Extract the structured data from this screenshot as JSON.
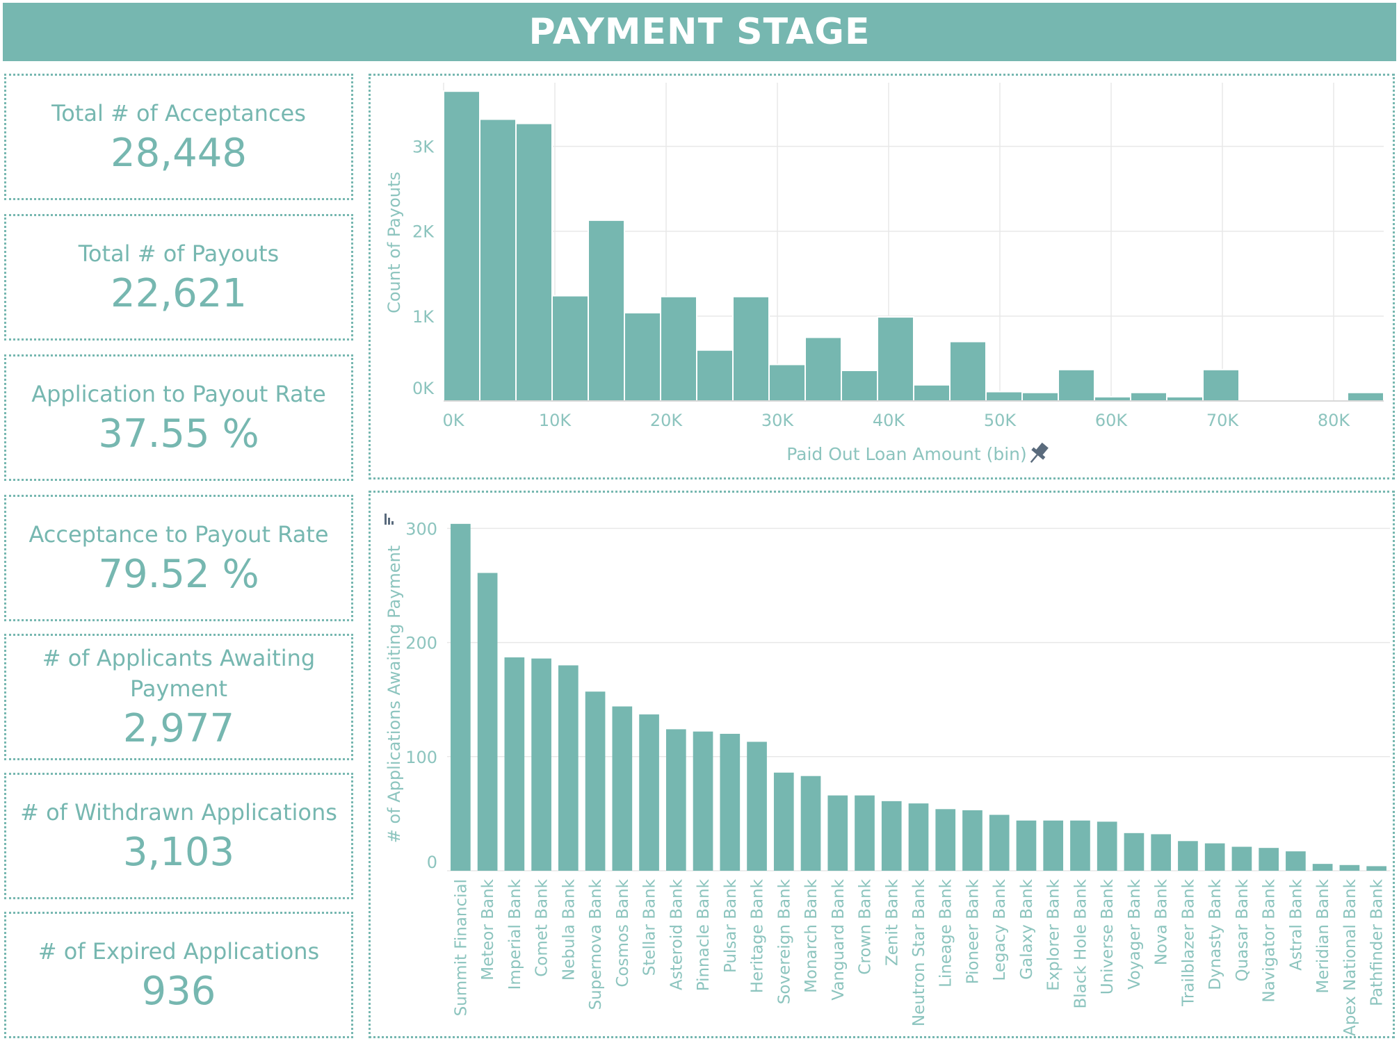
{
  "header": {
    "title": "PAYMENT STAGE"
  },
  "kpis": [
    {
      "label": "Total # of Acceptances",
      "value": "28,448"
    },
    {
      "label": "Total # of Payouts",
      "value": "22,621"
    },
    {
      "label": "Application to Payout Rate",
      "value": "37.55 %"
    },
    {
      "label": "Acceptance to Payout Rate",
      "value": "79.52 %"
    },
    {
      "label": "# of Applicants Awaiting Payment",
      "value": "2,977"
    },
    {
      "label": "# of Withdrawn Applications",
      "value": "3,103"
    },
    {
      "label": "# of Expired Applications",
      "value": "936"
    }
  ],
  "colors": {
    "accent": "#76b7b0",
    "grid": "#e8e8e8",
    "axis_text": "#8cc4be",
    "pin": "#5a6b7d"
  },
  "icons": {
    "pin": "pin-icon",
    "sort": "sort-icon"
  },
  "chart_data": [
    {
      "type": "bar",
      "xlabel": "Paid Out Loan Amount (bin)",
      "ylabel": "Count of Payouts",
      "bin_width": 3250,
      "x_start": 0,
      "values": [
        3650,
        3320,
        3270,
        1240,
        2130,
        1040,
        1230,
        600,
        1230,
        430,
        750,
        360,
        990,
        190,
        700,
        110,
        100,
        370,
        50,
        100,
        50,
        370,
        0,
        0,
        0,
        100
      ],
      "xlim": [
        0,
        84500
      ],
      "ylim": [
        0,
        3750
      ],
      "x_ticks": [
        0,
        10000,
        20000,
        30000,
        40000,
        50000,
        60000,
        70000,
        80000
      ],
      "x_tick_labels": [
        "0K",
        "10K",
        "20K",
        "30K",
        "40K",
        "50K",
        "60K",
        "70K",
        "80K"
      ],
      "y_ticks": [
        0,
        1000,
        2000,
        3000
      ],
      "y_tick_labels": [
        "0K",
        "1K",
        "2K",
        "3K"
      ],
      "grid": true
    },
    {
      "type": "bar",
      "xlabel": "",
      "ylabel": "# of Applications Awaiting Payment",
      "categories": [
        "Summit Financial",
        "Meteor Bank",
        "Imperial Bank",
        "Comet Bank",
        "Nebula Bank",
        "Supernova Bank",
        "Cosmos Bank",
        "Stellar Bank",
        "Asteroid Bank",
        "Pinnacle Bank",
        "Pulsar Bank",
        "Heritage Bank",
        "Sovereign Bank",
        "Monarch Bank",
        "Vanguard Bank",
        "Crown Bank",
        "Zenit Bank",
        "Neutron Star Bank",
        "Lineage Bank",
        "Pioneer Bank",
        "Legacy Bank",
        "Galaxy Bank",
        "Explorer Bank",
        "Black Hole Bank",
        "Universe Bank",
        "Voyager Bank",
        "Nova Bank",
        "Trailblazer Bank",
        "Dynasty Bank",
        "Quasar Bank",
        "Navigator Bank",
        "Astral Bank",
        "Meridian Bank",
        "Apex National Bank",
        "Pathfinder Bank"
      ],
      "values": [
        304,
        261,
        187,
        186,
        180,
        157,
        144,
        137,
        124,
        122,
        120,
        113,
        86,
        83,
        66,
        66,
        61,
        59,
        54,
        53,
        49,
        44,
        44,
        44,
        43,
        33,
        32,
        26,
        24,
        21,
        20,
        17,
        6,
        5,
        4
      ],
      "ylim": [
        0,
        310
      ],
      "y_ticks": [
        0,
        100,
        200,
        300
      ],
      "y_tick_labels": [
        "0",
        "100",
        "200",
        "300"
      ],
      "grid": true
    }
  ]
}
